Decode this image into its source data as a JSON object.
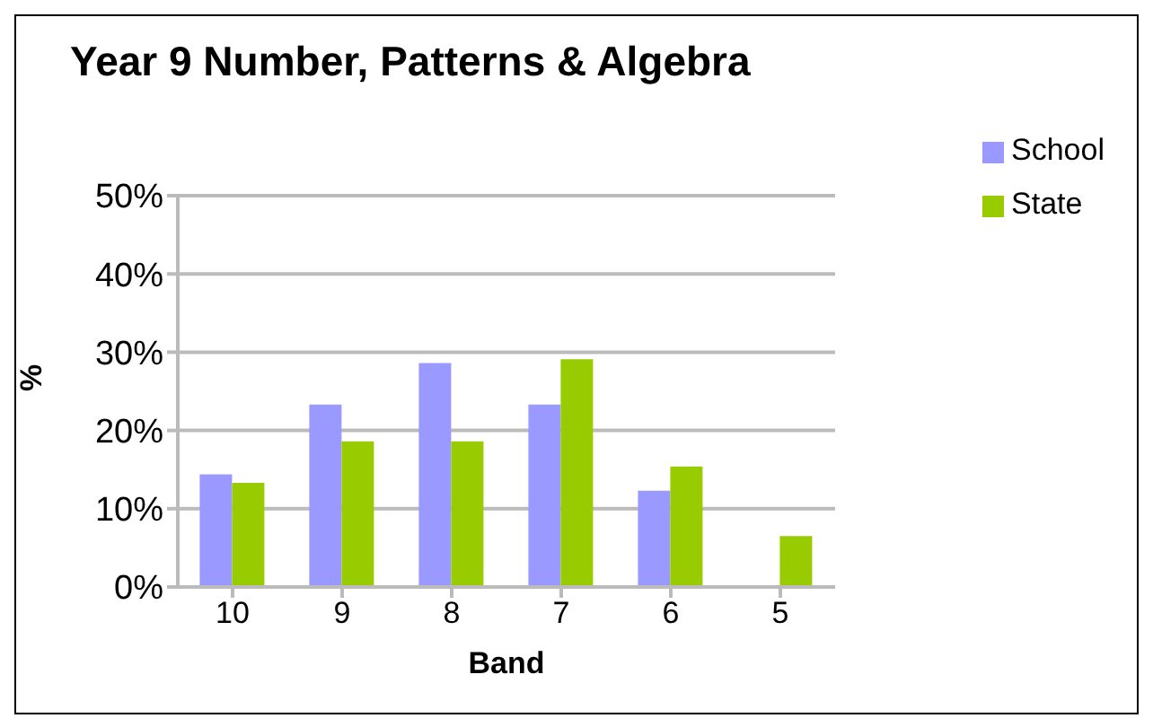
{
  "chart_data": {
    "type": "bar",
    "title": "Year 9 Number, Patterns & Algebra",
    "xlabel": "Band",
    "ylabel": "%",
    "categories": [
      "10",
      "9",
      "8",
      "7",
      "6",
      "5"
    ],
    "series": [
      {
        "name": "School",
        "color": "#9999ff",
        "values": [
          14.4,
          23.3,
          28.6,
          23.3,
          12.3,
          0
        ]
      },
      {
        "name": "State",
        "color": "#99cc00",
        "values": [
          13.3,
          18.6,
          18.6,
          29.1,
          15.4,
          6.5
        ]
      }
    ],
    "ylim": [
      0,
      50
    ],
    "yticks": [
      {
        "value": 0,
        "label": "0%"
      },
      {
        "value": 10,
        "label": "10%"
      },
      {
        "value": 20,
        "label": "20%"
      },
      {
        "value": 30,
        "label": "30%"
      },
      {
        "value": 40,
        "label": "40%"
      },
      {
        "value": 50,
        "label": "50%"
      }
    ],
    "grid": "y",
    "legend": "top right"
  }
}
